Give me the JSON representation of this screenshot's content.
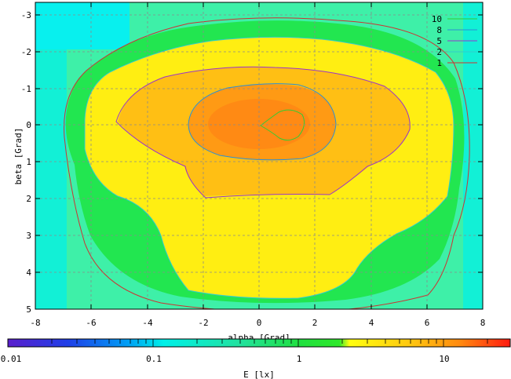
{
  "chart_data": {
    "type": "heatmap",
    "title": "",
    "xlabel": "alpha [Grad]",
    "ylabel": "beta [Grad]",
    "xlim": [
      -8,
      8
    ],
    "ylim": [
      5,
      -3.3
    ],
    "x_ticks": [
      "-8",
      "-6",
      "-4",
      "-2",
      "0",
      "2",
      "4",
      "6",
      "8"
    ],
    "y_ticks": [
      "-3",
      "-2",
      "-1",
      "0",
      "1",
      "2",
      "3",
      "4",
      "5"
    ],
    "grid": true,
    "colorbar": {
      "label": "E [lx]",
      "scale": "log",
      "range": [
        0.01,
        30
      ],
      "ticks": [
        "0.01",
        "0.1",
        "1",
        "10"
      ]
    },
    "contour_levels": [
      {
        "name": "10",
        "color": "#33cc33"
      },
      {
        "name": "8",
        "color": "#2a8fd6"
      },
      {
        "name": "5",
        "color": "#9933cc"
      },
      {
        "name": "2",
        "color": "#33cccc"
      },
      {
        "name": "1",
        "color": "#cc3333"
      }
    ],
    "legend_position": "top-right",
    "peak": {
      "x": 0.6,
      "y": 0.0,
      "value": 11
    }
  }
}
